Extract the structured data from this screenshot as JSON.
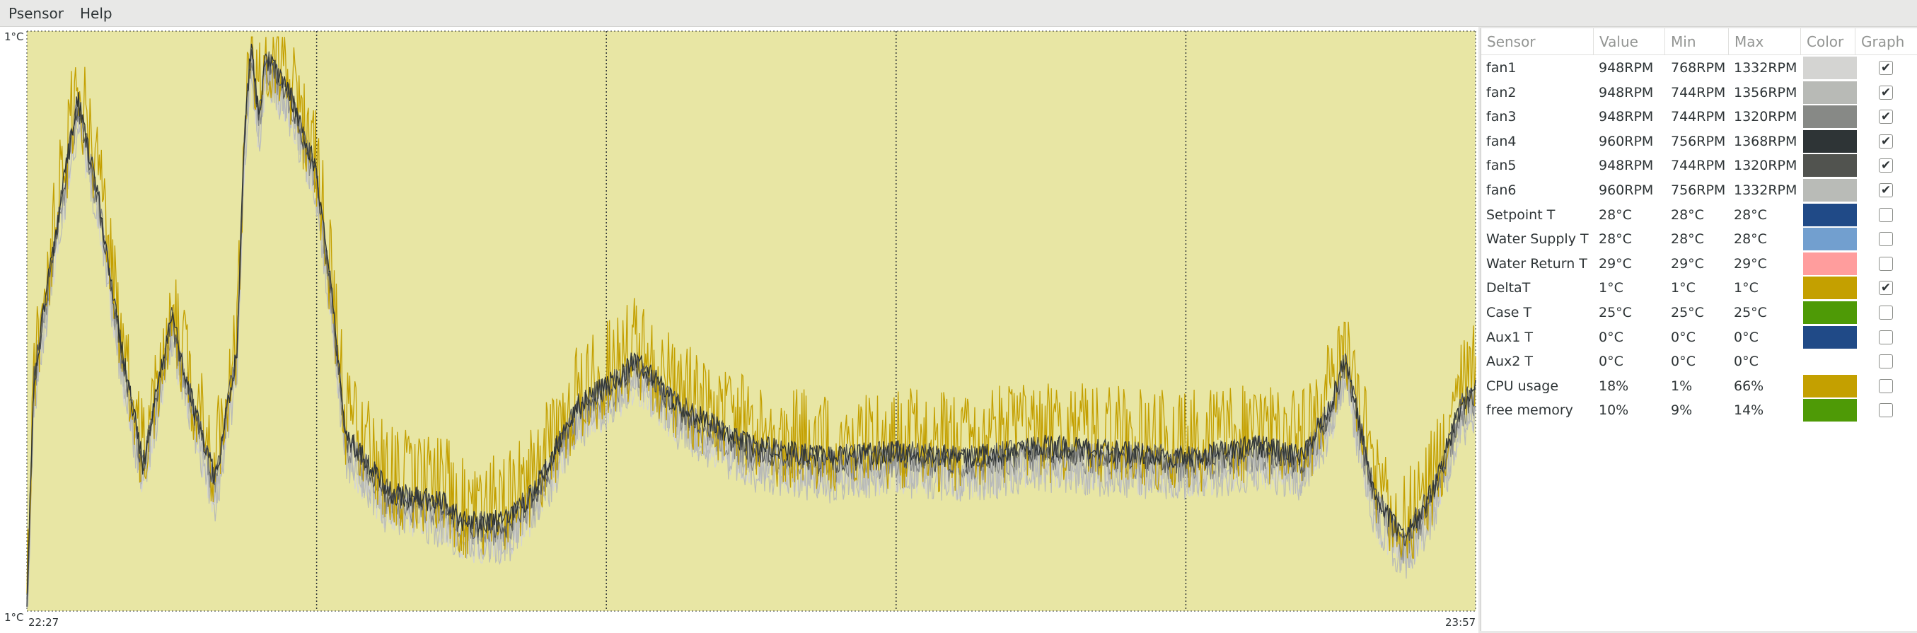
{
  "menu": {
    "items": [
      "Psensor",
      "Help"
    ]
  },
  "graph": {
    "y_top_label": "1°C",
    "y_bottom_label": "1°C",
    "x_start_label": "22:27",
    "x_end_label": "23:57",
    "background_color": "#e8e6a4"
  },
  "table": {
    "headers": [
      "Sensor",
      "Value",
      "Min",
      "Max",
      "Color",
      "Graph"
    ],
    "rows": [
      {
        "sensor": "fan1",
        "value": "948RPM",
        "min": "768RPM",
        "max": "1332RPM",
        "color": "#d4d4d2",
        "graph": true
      },
      {
        "sensor": "fan2",
        "value": "948RPM",
        "min": "744RPM",
        "max": "1356RPM",
        "color": "#b8bab6",
        "graph": true
      },
      {
        "sensor": "fan3",
        "value": "948RPM",
        "min": "744RPM",
        "max": "1320RPM",
        "color": "#878986",
        "graph": true
      },
      {
        "sensor": "fan4",
        "value": "960RPM",
        "min": "756RPM",
        "max": "1368RPM",
        "color": "#2e3436",
        "graph": true
      },
      {
        "sensor": "fan5",
        "value": "948RPM",
        "min": "744RPM",
        "max": "1320RPM",
        "color": "#51534f",
        "graph": true
      },
      {
        "sensor": "fan6",
        "value": "960RPM",
        "min": "756RPM",
        "max": "1332RPM",
        "color": "#b9bbb7",
        "graph": true
      },
      {
        "sensor": "Setpoint T",
        "value": "28°C",
        "min": "28°C",
        "max": "28°C",
        "color": "#204a87",
        "graph": false
      },
      {
        "sensor": "Water Supply T",
        "value": "28°C",
        "min": "28°C",
        "max": "28°C",
        "color": "#729fcf",
        "graph": false
      },
      {
        "sensor": "Water Return T",
        "value": "29°C",
        "min": "29°C",
        "max": "29°C",
        "color": "#ff9d9d",
        "graph": false
      },
      {
        "sensor": "DeltaT",
        "value": "1°C",
        "min": "1°C",
        "max": "1°C",
        "color": "#c4a000",
        "graph": true
      },
      {
        "sensor": "Case T",
        "value": "25°C",
        "min": "25°C",
        "max": "25°C",
        "color": "#4e9a06",
        "graph": false
      },
      {
        "sensor": "Aux1 T",
        "value": "0°C",
        "min": "0°C",
        "max": "0°C",
        "color": "#204a87",
        "graph": false
      },
      {
        "sensor": "Aux2 T",
        "value": "0°C",
        "min": "0°C",
        "max": "0°C",
        "color": "#ffffff",
        "graph": false
      },
      {
        "sensor": "CPU usage",
        "value": "18%",
        "min": "1%",
        "max": "66%",
        "color": "#c4a000",
        "graph": false
      },
      {
        "sensor": "free memory",
        "value": "10%",
        "min": "9%",
        "max": "14%",
        "color": "#4e9a06",
        "graph": false
      }
    ]
  }
}
